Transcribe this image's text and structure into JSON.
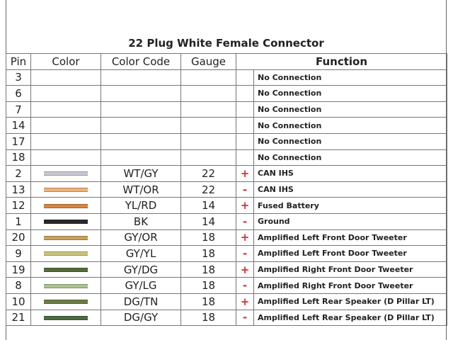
{
  "title": "22 Plug White Female Connector",
  "header": {
    "pin": "Pin",
    "color": "Color",
    "color_code": "Color Code",
    "gauge": "Gauge",
    "function": "Function"
  },
  "rows": [
    {
      "pin": 3,
      "function": "No Connection"
    },
    {
      "pin": 6,
      "function": "No Connection"
    },
    {
      "pin": 7,
      "function": "No Connection"
    },
    {
      "pin": 14,
      "function": "No Connection"
    },
    {
      "pin": 17,
      "function": "No Connection"
    },
    {
      "pin": 18,
      "function": "No Connection"
    },
    {
      "pin": 2,
      "color_code": "WT/GY",
      "gauge": 22,
      "sign": "+",
      "function": "CAN IHS"
    },
    {
      "pin": 13,
      "color_code": "WT/OR",
      "gauge": 22,
      "sign": "-",
      "function": "CAN IHS"
    },
    {
      "pin": 12,
      "color_code": "YL/RD",
      "gauge": 14,
      "sign": "+",
      "function": "Fused Battery"
    },
    {
      "pin": 1,
      "color_code": "BK",
      "gauge": 14,
      "sign": "-",
      "function": "Ground"
    },
    {
      "pin": 20,
      "color_code": "GY/OR",
      "gauge": 18,
      "sign": "+",
      "function": "Amplified Left Front Door Tweeter"
    },
    {
      "pin": 9,
      "color_code": "GY/YL",
      "gauge": 18,
      "sign": "-",
      "function": "Amplified Left Front Door Tweeter"
    },
    {
      "pin": 19,
      "color_code": "GY/DG",
      "gauge": 18,
      "sign": "+",
      "function": "Amplified Right Front Door Tweeter"
    },
    {
      "pin": 8,
      "color_code": "GY/LG",
      "gauge": 18,
      "sign": "-",
      "function": "Amplified Right Front Door Tweeter"
    },
    {
      "pin": 10,
      "color_code": "DG/TN",
      "gauge": 18,
      "sign": "+",
      "function": "Amplified Left Rear Speaker (D Pillar LT)"
    },
    {
      "pin": 21,
      "color_code": "DG/GY",
      "gauge": 18,
      "sign": "-",
      "function": "Amplified Left Rear Speaker (D Pillar LT)"
    }
  ]
}
